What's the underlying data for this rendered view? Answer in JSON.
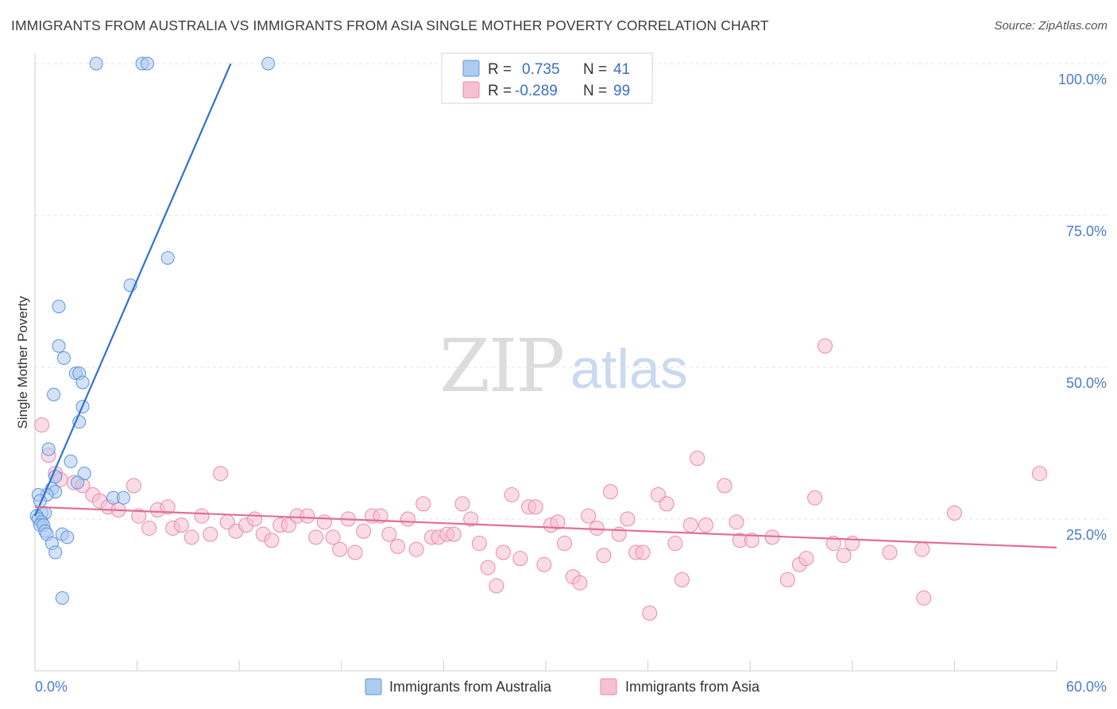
{
  "title": "IMMIGRANTS FROM AUSTRALIA VS IMMIGRANTS FROM ASIA SINGLE MOTHER POVERTY CORRELATION CHART",
  "source": "Source: ZipAtlas.com",
  "watermark": {
    "zip": "ZIP",
    "atlas": "atlas"
  },
  "chart_data": {
    "type": "scatter",
    "title": "IMMIGRANTS FROM AUSTRALIA VS IMMIGRANTS FROM ASIA SINGLE MOTHER POVERTY CORRELATION CHART",
    "xlabel": "",
    "ylabel": "Single Mother Poverty",
    "xlim": [
      0,
      60
    ],
    "ylim": [
      0,
      102
    ],
    "x_tick_labels": [
      "0.0%",
      "60.0%"
    ],
    "y_ticks": [
      {
        "value": 25,
        "label": "25.0%"
      },
      {
        "value": 50,
        "label": "50.0%"
      },
      {
        "value": 75,
        "label": "75.0%"
      },
      {
        "value": 100,
        "label": "100.0%"
      }
    ],
    "legend": {
      "stats": [
        {
          "r_label": "R =",
          "r_value": "0.735",
          "n_label": "N =",
          "n_value": "41"
        },
        {
          "r_label": "R =",
          "r_value": "-0.289",
          "n_label": "N =",
          "n_value": "99"
        }
      ]
    },
    "series": [
      {
        "name": "Immigrants from Australia",
        "color": "#5b95e0",
        "fill": "#aecbf0",
        "line_color": "#2f72d0",
        "trend": {
          "x": [
            0.0,
            11.5
          ],
          "y": [
            25.5,
            100.0
          ]
        },
        "points": [
          [
            3.6,
            100
          ],
          [
            6.3,
            100
          ],
          [
            6.6,
            100
          ],
          [
            13.7,
            100
          ],
          [
            7.8,
            68
          ],
          [
            5.6,
            63.5
          ],
          [
            1.4,
            60
          ],
          [
            1.4,
            53.5
          ],
          [
            1.7,
            51.5
          ],
          [
            2.4,
            49
          ],
          [
            2.6,
            49
          ],
          [
            1.1,
            45.5
          ],
          [
            2.8,
            47.5
          ],
          [
            2.8,
            43.5
          ],
          [
            2.6,
            41
          ],
          [
            0.8,
            36.5
          ],
          [
            2.1,
            34.5
          ],
          [
            2.9,
            32.5
          ],
          [
            1.2,
            32
          ],
          [
            1.0,
            30
          ],
          [
            1.2,
            29.5
          ],
          [
            0.7,
            29
          ],
          [
            0.2,
            29
          ],
          [
            0.3,
            28
          ],
          [
            0.4,
            26
          ],
          [
            0.6,
            26
          ],
          [
            0.1,
            25.5
          ],
          [
            0.2,
            25
          ],
          [
            0.4,
            24.5
          ],
          [
            0.3,
            24
          ],
          [
            0.5,
            24
          ],
          [
            0.6,
            23
          ],
          [
            0.7,
            22.5
          ],
          [
            1.6,
            22.5
          ],
          [
            1.9,
            22
          ],
          [
            1.0,
            21
          ],
          [
            1.2,
            19.5
          ],
          [
            1.6,
            12
          ],
          [
            4.6,
            28.5
          ],
          [
            5.2,
            28.5
          ],
          [
            2.5,
            31
          ]
        ]
      },
      {
        "name": "Immigrants from Asia",
        "color": "#e88aaa",
        "fill": "#f7bfd2",
        "line_color": "#e06f95",
        "trend": {
          "x": [
            0.0,
            60.0
          ],
          "y": [
            27.0,
            20.3
          ]
        },
        "points": [
          [
            0.4,
            40.5
          ],
          [
            0.8,
            35.5
          ],
          [
            1.2,
            32.5
          ],
          [
            1.5,
            31.5
          ],
          [
            2.3,
            31
          ],
          [
            2.8,
            30.5
          ],
          [
            3.4,
            29
          ],
          [
            3.8,
            28
          ],
          [
            4.3,
            27
          ],
          [
            4.9,
            26.5
          ],
          [
            5.8,
            30.5
          ],
          [
            6.1,
            25.5
          ],
          [
            6.7,
            23.5
          ],
          [
            7.2,
            26.5
          ],
          [
            7.8,
            27
          ],
          [
            8.1,
            23.5
          ],
          [
            8.6,
            24
          ],
          [
            9.2,
            22
          ],
          [
            9.8,
            25.5
          ],
          [
            10.3,
            22.5
          ],
          [
            10.9,
            32.5
          ],
          [
            11.3,
            24.5
          ],
          [
            11.8,
            23
          ],
          [
            12.4,
            24
          ],
          [
            12.9,
            25
          ],
          [
            13.4,
            22.5
          ],
          [
            13.9,
            21.5
          ],
          [
            14.4,
            24
          ],
          [
            14.9,
            24
          ],
          [
            15.4,
            25.5
          ],
          [
            16.0,
            25.5
          ],
          [
            16.5,
            22
          ],
          [
            17.0,
            24.5
          ],
          [
            17.5,
            22
          ],
          [
            17.9,
            20
          ],
          [
            18.4,
            25
          ],
          [
            18.8,
            19.5
          ],
          [
            19.3,
            23
          ],
          [
            19.8,
            25.5
          ],
          [
            20.3,
            25.5
          ],
          [
            20.8,
            22.5
          ],
          [
            21.3,
            20.5
          ],
          [
            21.9,
            25
          ],
          [
            22.4,
            20
          ],
          [
            22.8,
            27.5
          ],
          [
            23.3,
            22
          ],
          [
            23.7,
            22
          ],
          [
            24.2,
            22.5
          ],
          [
            24.6,
            22.5
          ],
          [
            25.1,
            27.5
          ],
          [
            25.6,
            25
          ],
          [
            26.1,
            21
          ],
          [
            26.6,
            17
          ],
          [
            27.1,
            14
          ],
          [
            27.5,
            19.5
          ],
          [
            28.0,
            29
          ],
          [
            28.5,
            18.5
          ],
          [
            29.0,
            27
          ],
          [
            29.4,
            27
          ],
          [
            29.9,
            17.5
          ],
          [
            30.3,
            24
          ],
          [
            30.7,
            24.5
          ],
          [
            31.1,
            21
          ],
          [
            31.6,
            15.5
          ],
          [
            32.0,
            14.5
          ],
          [
            32.5,
            25.5
          ],
          [
            33.0,
            23.5
          ],
          [
            33.4,
            19
          ],
          [
            33.8,
            29.5
          ],
          [
            34.3,
            22.5
          ],
          [
            34.8,
            25
          ],
          [
            35.3,
            19.5
          ],
          [
            35.7,
            19.5
          ],
          [
            36.1,
            9.5
          ],
          [
            36.6,
            29
          ],
          [
            37.1,
            27.5
          ],
          [
            37.6,
            21
          ],
          [
            38.0,
            15
          ],
          [
            38.5,
            24
          ],
          [
            38.9,
            35
          ],
          [
            39.4,
            24
          ],
          [
            40.5,
            30.5
          ],
          [
            41.4,
            21.5
          ],
          [
            42.1,
            21.5
          ],
          [
            43.3,
            22
          ],
          [
            44.2,
            15
          ],
          [
            44.9,
            17.5
          ],
          [
            45.3,
            18.5
          ],
          [
            45.8,
            28.5
          ],
          [
            46.4,
            53.5
          ],
          [
            46.9,
            21
          ],
          [
            47.5,
            19
          ],
          [
            48.0,
            21
          ],
          [
            50.2,
            19.5
          ],
          [
            52.1,
            20
          ],
          [
            52.2,
            12
          ],
          [
            54.0,
            26
          ],
          [
            59.0,
            32.5
          ],
          [
            41.2,
            24.5
          ]
        ]
      }
    ]
  }
}
